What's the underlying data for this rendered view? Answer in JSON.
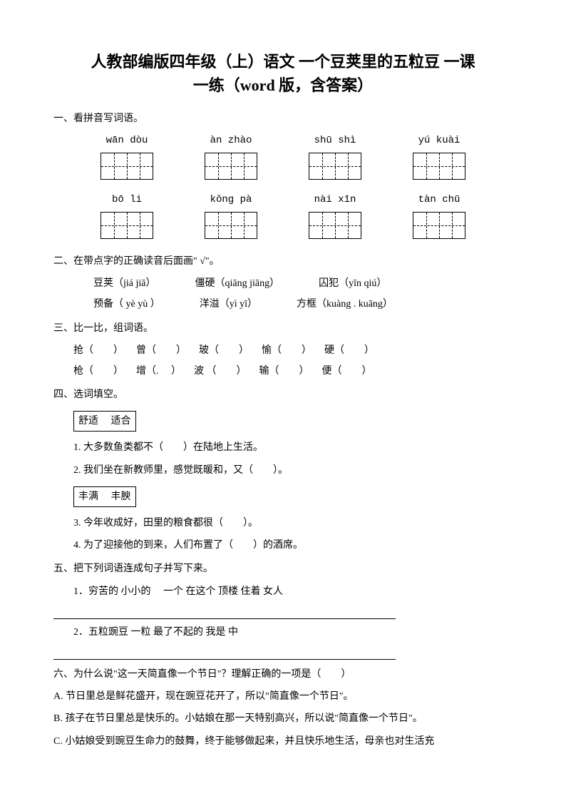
{
  "title_line1": "人教部编版四年级（上）语文 一个豆荚里的五粒豆 一课",
  "title_line2": "一练（word 版，含答案）",
  "sections": {
    "s1": {
      "header": "一、看拼音写词语。",
      "row1": [
        {
          "pinyin": "wān dòu"
        },
        {
          "pinyin": "àn zhào"
        },
        {
          "pinyin": "shū shì"
        },
        {
          "pinyin": "yú kuài"
        }
      ],
      "row2": [
        {
          "pinyin": "bō li"
        },
        {
          "pinyin": "kǒng pà"
        },
        {
          "pinyin": "nài xīn"
        },
        {
          "pinyin": "tàn chū"
        }
      ]
    },
    "s2": {
      "header": "二、在带点字的正确读音后面画\" √\"。",
      "items": [
        [
          "豆荚（jiá  jiā）",
          "僵硬（qiāng jiāng）",
          "囚犯（yīn qiú）"
        ],
        [
          "预备（ yè yù ）",
          "洋溢（yì yī）",
          "方框（kuàng . kuāng）"
        ]
      ]
    },
    "s3": {
      "header": "三、比一比，组词语。",
      "row1": [
        "抢（　　）",
        "曾（　　）",
        "玻（　　）",
        "愉（　　）",
        "硬（　　）"
      ],
      "row2": [
        "枪（　　）",
        "增（. 　）",
        "波 （　　）",
        "输（　　）",
        "便（　　）"
      ]
    },
    "s4": {
      "header": "四、选词填空。",
      "box1": "舒适　 适合",
      "q1": "1. 大多数鱼类都不（　　）在陆地上生活。",
      "q2": "2. 我们坐在新教师里，感觉既暖和，又（　　）。",
      "box2": "丰满　 丰腴",
      "q3": "3. 今年收成好，田里的粮食都很（　　）。",
      "q4": "4. 为了迎接他的到来，人们布置了（　　）的酒席。"
    },
    "s5": {
      "header": "五、把下列词语连成句子并写下来。",
      "q1": "1．穷苦的  小小的　 一个  在这个  顶楼  住着  女人",
      "q2": "2．五粒豌豆  一粒  最了不起的  我是  中"
    },
    "s6": {
      "header": "六、为什么说\"这一天简直像一个节日\"？理解正确的一项是（　　）",
      "a": "A. 节日里总是鲜花盛开，现在豌豆花开了，所以\"简直像一个节日\"。",
      "b": "B. 孩子在节日里总是快乐的。小姑娘在那一天特别高兴，所以说\"简直像一个节日\"。",
      "c": "C. 小姑娘受到豌豆生命力的鼓舞，终于能够做起来，并且快乐地生活，母亲也对生活充"
    }
  },
  "colors": {
    "text": "#000000",
    "background": "#ffffff"
  }
}
